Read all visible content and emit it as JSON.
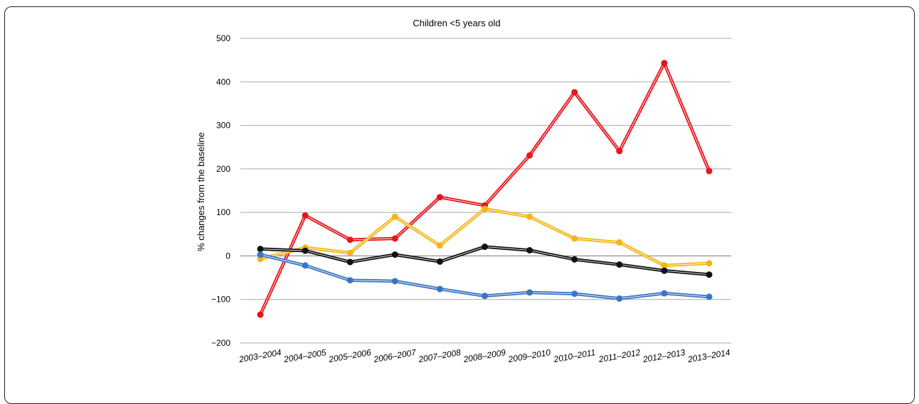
{
  "chart_data": {
    "type": "line",
    "title": "Children <5 years old",
    "xlabel": "",
    "ylabel": "% changes from the baseline",
    "categories": [
      "2003–2004",
      "2004–2005",
      "2005–2006",
      "2006–2007",
      "2007–2008",
      "2008–2009",
      "2009–2010",
      "2010–2011",
      "2011–2012",
      "2012–2013",
      "2013–2014"
    ],
    "ylim": [
      -200,
      500
    ],
    "yticks": [
      -200,
      -100,
      0,
      100,
      200,
      300,
      400,
      500
    ],
    "ytick_labels": [
      "−200",
      "−100",
      "0",
      "100",
      "200",
      "300",
      "400",
      "500"
    ],
    "grid": true,
    "legend": "none",
    "series": [
      {
        "color": "#e8141b",
        "values": [
          -135,
          93,
          37,
          40,
          135,
          116,
          231,
          376,
          241,
          443,
          195
        ]
      },
      {
        "color": "#f2b616",
        "values": [
          -7,
          19,
          7,
          90,
          24,
          108,
          90,
          40,
          31,
          -22,
          -17
        ]
      },
      {
        "color": "#111111",
        "values": [
          16,
          12,
          -14,
          3,
          -13,
          21,
          13,
          -8,
          -20,
          -34,
          -43
        ]
      },
      {
        "color": "#3a74c4",
        "values": [
          3,
          -22,
          -56,
          -58,
          -76,
          -92,
          -84,
          -87,
          -98,
          -86,
          -94
        ]
      }
    ]
  }
}
